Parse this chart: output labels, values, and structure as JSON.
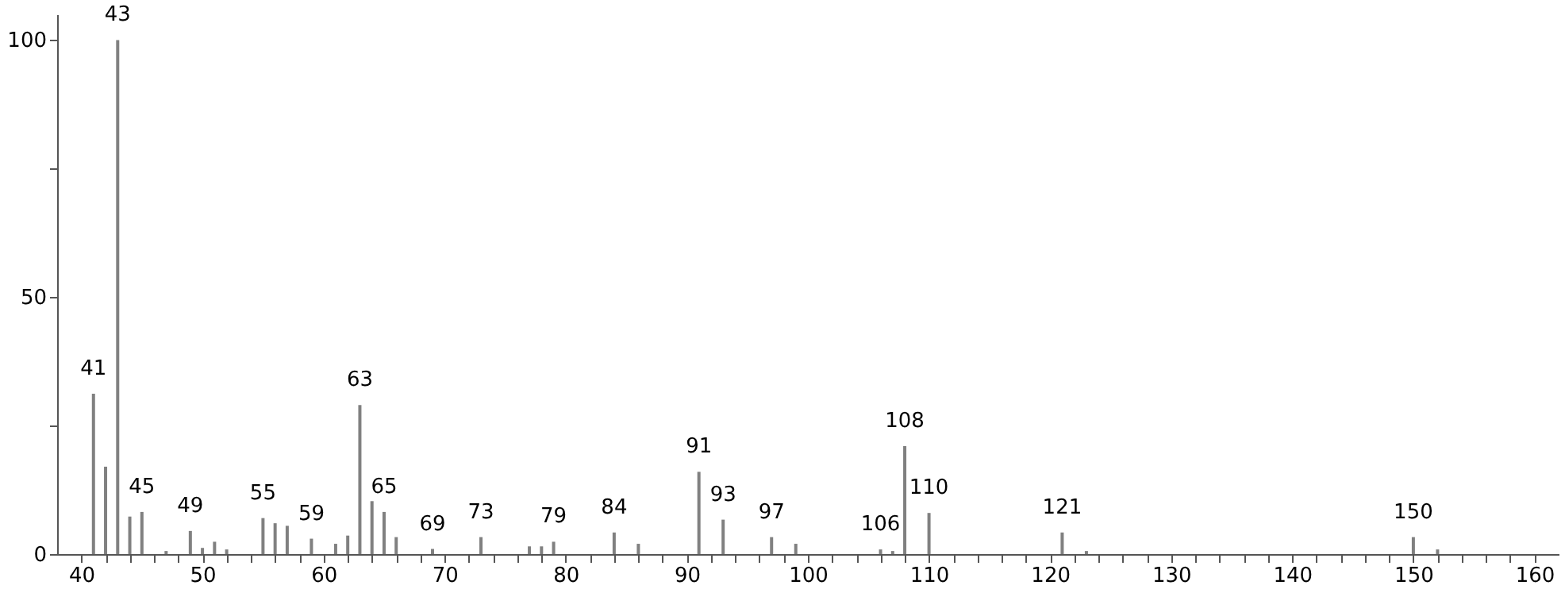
{
  "chart_data": {
    "type": "bar",
    "x": [
      41,
      42,
      43,
      44,
      45,
      47,
      49,
      50,
      51,
      52,
      55,
      56,
      57,
      59,
      61,
      62,
      63,
      64,
      65,
      66,
      69,
      73,
      77,
      78,
      79,
      84,
      86,
      91,
      93,
      97,
      99,
      106,
      107,
      108,
      110,
      121,
      123,
      150,
      152
    ],
    "values": [
      31.2,
      17,
      100,
      7.3,
      8.2,
      0.6,
      4.5,
      1.2,
      2.4,
      0.9,
      7,
      6,
      5.5,
      3,
      2,
      3.6,
      29,
      10.3,
      8.2,
      3.3,
      1,
      3.3,
      1.5,
      1.5,
      2.4,
      4.2,
      2,
      16,
      6.7,
      3.3,
      2,
      0.9,
      0.6,
      21,
      8,
      4.2,
      0.6,
      3.3,
      0.9
    ],
    "color": "#808080",
    "xlim": [
      38,
      162
    ],
    "ylim": [
      0,
      105
    ],
    "yticks": [
      0,
      {
        "value": 25,
        "label": null
      },
      50,
      {
        "value": 75,
        "label": null
      },
      100
    ],
    "xticks": [
      40,
      {
        "value": 42,
        "label": null
      },
      {
        "value": 44,
        "label": null
      },
      {
        "value": 46,
        "label": null
      },
      {
        "value": 48,
        "label": null
      },
      50,
      {
        "value": 52,
        "label": null
      },
      {
        "value": 54,
        "label": null
      },
      {
        "value": 56,
        "label": null
      },
      {
        "value": 58,
        "label": null
      },
      60,
      {
        "value": 62,
        "label": null
      },
      {
        "value": 64,
        "label": null
      },
      {
        "value": 66,
        "label": null
      },
      {
        "value": 68,
        "label": null
      },
      70,
      {
        "value": 72,
        "label": null
      },
      {
        "value": 74,
        "label": null
      },
      {
        "value": 76,
        "label": null
      },
      {
        "value": 78,
        "label": null
      },
      80,
      {
        "value": 82,
        "label": null
      },
      {
        "value": 84,
        "label": null
      },
      {
        "value": 86,
        "label": null
      },
      {
        "value": 88,
        "label": null
      },
      90,
      {
        "value": 92,
        "label": null
      },
      {
        "value": 94,
        "label": null
      },
      {
        "value": 96,
        "label": null
      },
      {
        "value": 98,
        "label": null
      },
      100,
      {
        "value": 102,
        "label": null
      },
      {
        "value": 104,
        "label": null
      },
      {
        "value": 106,
        "label": null
      },
      {
        "value": 108,
        "label": null
      },
      110,
      {
        "value": 112,
        "label": null
      },
      {
        "value": 114,
        "label": null
      },
      {
        "value": 116,
        "label": null
      },
      {
        "value": 118,
        "label": null
      },
      120,
      {
        "value": 122,
        "label": null
      },
      {
        "value": 124,
        "label": null
      },
      {
        "value": 126,
        "label": null
      },
      {
        "value": 128,
        "label": null
      },
      130,
      {
        "value": 132,
        "label": null
      },
      {
        "value": 134,
        "label": null
      },
      {
        "value": 136,
        "label": null
      },
      {
        "value": 138,
        "label": null
      },
      140,
      {
        "value": 142,
        "label": null
      },
      {
        "value": 144,
        "label": null
      },
      {
        "value": 146,
        "label": null
      },
      {
        "value": 148,
        "label": null
      },
      150,
      {
        "value": 152,
        "label": null
      },
      {
        "value": 154,
        "label": null
      },
      {
        "value": 156,
        "label": null
      },
      {
        "value": 158,
        "label": null
      },
      160
    ],
    "grid": false,
    "annotations": [
      {
        "text": "41",
        "x": 41,
        "y": 31.2
      },
      {
        "text": "43",
        "x": 43,
        "y": 100
      },
      {
        "text": "45",
        "x": 45,
        "y": 8.2
      },
      {
        "text": "49",
        "x": 49,
        "y": 4.5
      },
      {
        "text": "55",
        "x": 55,
        "y": 7
      },
      {
        "text": "59",
        "x": 59,
        "y": 3
      },
      {
        "text": "63",
        "x": 63,
        "y": 29
      },
      {
        "text": "65",
        "x": 65,
        "y": 8.2
      },
      {
        "text": "69",
        "x": 69,
        "y": 1
      },
      {
        "text": "73",
        "x": 73,
        "y": 3.3
      },
      {
        "text": "79",
        "x": 79,
        "y": 2.4
      },
      {
        "text": "84",
        "x": 84,
        "y": 4.2
      },
      {
        "text": "91",
        "x": 91,
        "y": 16
      },
      {
        "text": "93",
        "x": 93,
        "y": 6.7
      },
      {
        "text": "97",
        "x": 97,
        "y": 3.3
      },
      {
        "text": "106",
        "x": 106,
        "y": 0.9
      },
      {
        "text": "108",
        "x": 108,
        "y": 21
      },
      {
        "text": "110",
        "x": 110,
        "y": 8
      },
      {
        "text": "121",
        "x": 121,
        "y": 4.2
      },
      {
        "text": "150",
        "x": 150,
        "y": 3.3
      }
    ]
  }
}
